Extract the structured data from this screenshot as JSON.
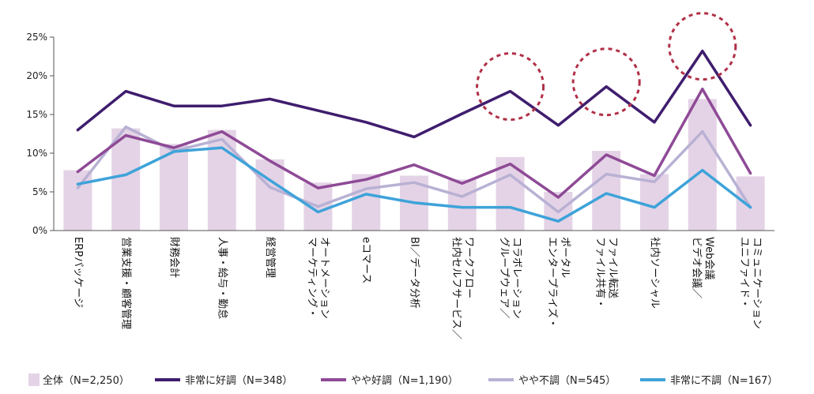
{
  "chart_data": {
    "type": "bar+line",
    "title": "",
    "xlabel": "",
    "ylabel": "",
    "ylim": [
      0,
      25
    ],
    "yticks": [
      "0%",
      "5%",
      "10%",
      "15%",
      "20%",
      "25%"
    ],
    "yticks_values": [
      0,
      5,
      10,
      15,
      20,
      25
    ],
    "categories": [
      [
        "ERPパッケージ"
      ],
      [
        "営業支援・顧客管理"
      ],
      [
        "財務会計"
      ],
      [
        "人事・給与・勤怠"
      ],
      [
        "経営管理"
      ],
      [
        "マーケティング・",
        "オートメーション"
      ],
      [
        "eコマース"
      ],
      [
        "BI／データ分析"
      ],
      [
        "社内セルフサービス／",
        "ワークフロー"
      ],
      [
        "グループウェア／",
        "コラボレーション"
      ],
      [
        "エンタープライズ・",
        "ポータル"
      ],
      [
        "ファイル共有・",
        "ファイル転送"
      ],
      [
        "社内ソーシャル"
      ],
      [
        "ビデオ会議／",
        "Web会議"
      ],
      [
        "ユニファイド・",
        "コミュニケーション"
      ]
    ],
    "bars": {
      "name": "全体（N=2,250）",
      "color": "#e4d3e6",
      "values": [
        7.8,
        13.2,
        11.2,
        13.0,
        9.2,
        6.2,
        7.3,
        7.1,
        6.6,
        9.5,
        5.0,
        10.3,
        7.3,
        17.0,
        7.0
      ]
    },
    "series": [
      {
        "name": "非常に好調（N=348）",
        "color": "#3f1d6e",
        "values": [
          13.0,
          18.0,
          16.1,
          16.1,
          17.0,
          15.5,
          14.0,
          12.1,
          15.1,
          18.0,
          13.6,
          18.6,
          14.0,
          23.2,
          13.6
        ]
      },
      {
        "name": "やや好調（N=1,190）",
        "color": "#8e4a96",
        "values": [
          7.6,
          12.3,
          10.7,
          12.8,
          9.0,
          5.5,
          6.6,
          8.5,
          6.1,
          8.6,
          4.3,
          9.8,
          7.1,
          18.3,
          7.4
        ]
      },
      {
        "name": "やや不調（N=545）",
        "color": "#b9b1d4",
        "values": [
          5.5,
          13.4,
          10.3,
          11.8,
          5.6,
          3.1,
          5.4,
          6.2,
          4.4,
          7.2,
          2.4,
          7.3,
          6.3,
          12.8,
          3.0
        ]
      },
      {
        "name": "非常に不調（N=167）",
        "color": "#3ea3d9",
        "values": [
          6.0,
          7.2,
          10.2,
          10.7,
          6.5,
          2.4,
          4.7,
          3.6,
          3.0,
          3.0,
          1.2,
          4.8,
          3.0,
          7.8,
          3.0
        ]
      }
    ],
    "highlight_circles": {
      "color": "#b03047",
      "categories": [
        9,
        11,
        13
      ]
    },
    "legend": "bottom",
    "grid": false
  }
}
